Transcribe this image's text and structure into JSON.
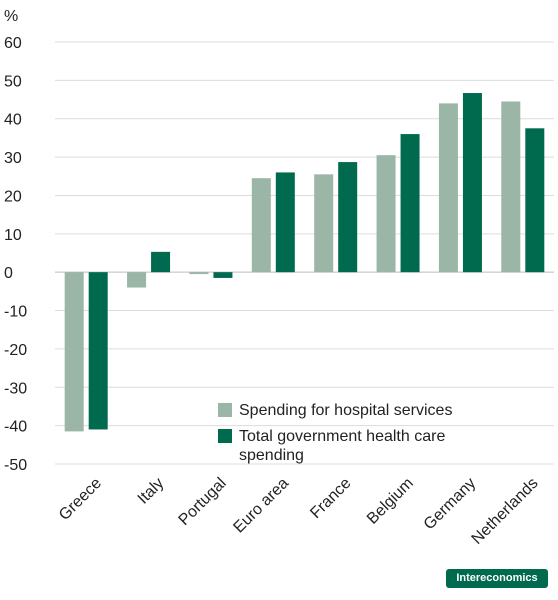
{
  "chart_data": {
    "type": "bar",
    "unit_label": "%",
    "categories": [
      "Greece",
      "Italy",
      "Portugal",
      "Euro area",
      "France",
      "Belgium",
      "Germany",
      "Netherlands"
    ],
    "series": [
      {
        "name": "Spending for hospital services",
        "color": "#9bb6a6",
        "values": [
          -41.5,
          -4.0,
          -0.5,
          24.5,
          25.5,
          30.5,
          44.0,
          44.5
        ]
      },
      {
        "name": "Total government health care spending",
        "color": "#006a4e",
        "values": [
          -41.0,
          5.3,
          -1.5,
          26.0,
          28.7,
          36.0,
          46.7,
          37.5
        ]
      }
    ],
    "ylim": [
      -50,
      60
    ],
    "yticks": [
      60,
      50,
      40,
      30,
      20,
      10,
      0,
      -10,
      -20,
      -30,
      -40,
      -50
    ],
    "grid": true,
    "legend_position": "bottom-right"
  },
  "legend": {
    "line1": "Spending for hospital services",
    "line2a": "Total government health care",
    "line2b": "spending"
  },
  "brand": "Intereconomics"
}
